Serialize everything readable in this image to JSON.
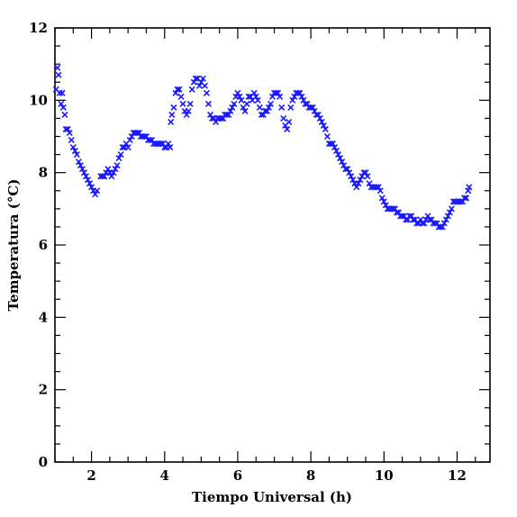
{
  "chart_data": {
    "type": "scatter",
    "xlabel": "Tiempo Universal (h)",
    "ylabel": "Temperatura (°C)",
    "xlim": [
      1.0,
      12.9
    ],
    "ylim": [
      0,
      12
    ],
    "xticks": [
      2,
      4,
      6,
      8,
      10,
      12
    ],
    "yticks": [
      0,
      2,
      4,
      6,
      8,
      10,
      12
    ],
    "x_minor_step": 0.5,
    "y_minor_step": 0.5,
    "marker": "x",
    "marker_color": "#1a1aff",
    "grid": false,
    "series": [
      {
        "points": [
          [
            1.03,
            10.3
          ],
          [
            1.07,
            10.9
          ],
          [
            1.1,
            10.7
          ],
          [
            1.13,
            10.2
          ],
          [
            1.17,
            9.9
          ],
          [
            1.2,
            10.2
          ],
          [
            1.23,
            9.8
          ],
          [
            1.27,
            9.6
          ],
          [
            1.3,
            9.2
          ],
          [
            1.35,
            9.2
          ],
          [
            1.4,
            9.1
          ],
          [
            1.45,
            8.9
          ],
          [
            1.5,
            8.7
          ],
          [
            1.55,
            8.6
          ],
          [
            1.6,
            8.5
          ],
          [
            1.65,
            8.3
          ],
          [
            1.7,
            8.2
          ],
          [
            1.75,
            8.1
          ],
          [
            1.8,
            8.0
          ],
          [
            1.85,
            7.9
          ],
          [
            1.9,
            7.8
          ],
          [
            1.95,
            7.7
          ],
          [
            2.0,
            7.6
          ],
          [
            2.05,
            7.5
          ],
          [
            2.1,
            7.4
          ],
          [
            2.15,
            7.5
          ],
          [
            2.25,
            7.9
          ],
          [
            2.3,
            7.9
          ],
          [
            2.35,
            7.9
          ],
          [
            2.4,
            8.0
          ],
          [
            2.45,
            8.1
          ],
          [
            2.5,
            8.0
          ],
          [
            2.55,
            7.9
          ],
          [
            2.6,
            8.0
          ],
          [
            2.65,
            8.1
          ],
          [
            2.7,
            8.2
          ],
          [
            2.75,
            8.4
          ],
          [
            2.8,
            8.5
          ],
          [
            2.85,
            8.7
          ],
          [
            2.9,
            8.7
          ],
          [
            2.95,
            8.8
          ],
          [
            3.0,
            8.7
          ],
          [
            3.05,
            8.9
          ],
          [
            3.1,
            9.0
          ],
          [
            3.15,
            9.1
          ],
          [
            3.2,
            9.1
          ],
          [
            3.25,
            9.1
          ],
          [
            3.3,
            9.1
          ],
          [
            3.35,
            9.0
          ],
          [
            3.4,
            9.0
          ],
          [
            3.45,
            9.0
          ],
          [
            3.5,
            9.0
          ],
          [
            3.55,
            8.9
          ],
          [
            3.6,
            8.9
          ],
          [
            3.65,
            8.9
          ],
          [
            3.7,
            8.8
          ],
          [
            3.75,
            8.8
          ],
          [
            3.8,
            8.8
          ],
          [
            3.85,
            8.8
          ],
          [
            3.9,
            8.8
          ],
          [
            3.95,
            8.8
          ],
          [
            4.0,
            8.7
          ],
          [
            4.05,
            8.7
          ],
          [
            4.1,
            8.8
          ],
          [
            4.15,
            8.7
          ],
          [
            4.17,
            9.4
          ],
          [
            4.2,
            9.6
          ],
          [
            4.25,
            9.8
          ],
          [
            4.3,
            10.2
          ],
          [
            4.35,
            10.3
          ],
          [
            4.4,
            10.3
          ],
          [
            4.45,
            10.1
          ],
          [
            4.5,
            9.9
          ],
          [
            4.55,
            9.7
          ],
          [
            4.6,
            9.6
          ],
          [
            4.65,
            9.7
          ],
          [
            4.7,
            9.9
          ],
          [
            4.75,
            10.3
          ],
          [
            4.8,
            10.5
          ],
          [
            4.85,
            10.6
          ],
          [
            4.9,
            10.6
          ],
          [
            4.95,
            10.4
          ],
          [
            5.0,
            10.5
          ],
          [
            5.05,
            10.6
          ],
          [
            5.1,
            10.4
          ],
          [
            5.15,
            10.2
          ],
          [
            5.2,
            9.9
          ],
          [
            5.25,
            9.6
          ],
          [
            5.3,
            9.5
          ],
          [
            5.35,
            9.5
          ],
          [
            5.4,
            9.4
          ],
          [
            5.45,
            9.5
          ],
          [
            5.5,
            9.5
          ],
          [
            5.55,
            9.5
          ],
          [
            5.6,
            9.5
          ],
          [
            5.65,
            9.6
          ],
          [
            5.7,
            9.6
          ],
          [
            5.75,
            9.6
          ],
          [
            5.8,
            9.7
          ],
          [
            5.85,
            9.8
          ],
          [
            5.9,
            9.9
          ],
          [
            5.95,
            10.1
          ],
          [
            6.0,
            10.2
          ],
          [
            6.05,
            10.1
          ],
          [
            6.1,
            10.0
          ],
          [
            6.15,
            9.8
          ],
          [
            6.2,
            9.7
          ],
          [
            6.25,
            9.9
          ],
          [
            6.3,
            10.1
          ],
          [
            6.35,
            10.1
          ],
          [
            6.4,
            10.0
          ],
          [
            6.45,
            10.2
          ],
          [
            6.5,
            10.1
          ],
          [
            6.55,
            10.0
          ],
          [
            6.6,
            9.8
          ],
          [
            6.65,
            9.6
          ],
          [
            6.7,
            9.6
          ],
          [
            6.75,
            9.7
          ],
          [
            6.8,
            9.7
          ],
          [
            6.85,
            9.8
          ],
          [
            6.9,
            9.9
          ],
          [
            6.95,
            10.1
          ],
          [
            7.0,
            10.2
          ],
          [
            7.05,
            10.2
          ],
          [
            7.1,
            10.2
          ],
          [
            7.15,
            10.1
          ],
          [
            7.2,
            9.8
          ],
          [
            7.25,
            9.5
          ],
          [
            7.3,
            9.3
          ],
          [
            7.35,
            9.2
          ],
          [
            7.4,
            9.4
          ],
          [
            7.45,
            9.8
          ],
          [
            7.5,
            10.0
          ],
          [
            7.55,
            10.1
          ],
          [
            7.6,
            10.2
          ],
          [
            7.65,
            10.2
          ],
          [
            7.7,
            10.2
          ],
          [
            7.75,
            10.1
          ],
          [
            7.8,
            10.0
          ],
          [
            7.85,
            9.9
          ],
          [
            7.9,
            9.9
          ],
          [
            7.95,
            9.8
          ],
          [
            8.0,
            9.8
          ],
          [
            8.05,
            9.8
          ],
          [
            8.1,
            9.7
          ],
          [
            8.15,
            9.6
          ],
          [
            8.2,
            9.6
          ],
          [
            8.25,
            9.5
          ],
          [
            8.3,
            9.4
          ],
          [
            8.35,
            9.3
          ],
          [
            8.4,
            9.2
          ],
          [
            8.45,
            9.0
          ],
          [
            8.5,
            8.8
          ],
          [
            8.55,
            8.8
          ],
          [
            8.6,
            8.8
          ],
          [
            8.65,
            8.7
          ],
          [
            8.7,
            8.6
          ],
          [
            8.75,
            8.5
          ],
          [
            8.8,
            8.4
          ],
          [
            8.85,
            8.3
          ],
          [
            8.9,
            8.2
          ],
          [
            8.95,
            8.1
          ],
          [
            9.0,
            8.1
          ],
          [
            9.05,
            8.0
          ],
          [
            9.1,
            7.9
          ],
          [
            9.15,
            7.8
          ],
          [
            9.2,
            7.7
          ],
          [
            9.25,
            7.6
          ],
          [
            9.3,
            7.7
          ],
          [
            9.35,
            7.8
          ],
          [
            9.4,
            7.9
          ],
          [
            9.45,
            8.0
          ],
          [
            9.5,
            8.0
          ],
          [
            9.55,
            7.9
          ],
          [
            9.6,
            7.7
          ],
          [
            9.65,
            7.6
          ],
          [
            9.7,
            7.6
          ],
          [
            9.75,
            7.6
          ],
          [
            9.8,
            7.6
          ],
          [
            9.85,
            7.6
          ],
          [
            9.9,
            7.5
          ],
          [
            9.95,
            7.3
          ],
          [
            10.0,
            7.2
          ],
          [
            10.05,
            7.1
          ],
          [
            10.1,
            7.0
          ],
          [
            10.15,
            7.0
          ],
          [
            10.2,
            7.0
          ],
          [
            10.25,
            7.0
          ],
          [
            10.3,
            7.0
          ],
          [
            10.35,
            6.9
          ],
          [
            10.4,
            6.9
          ],
          [
            10.45,
            6.8
          ],
          [
            10.5,
            6.8
          ],
          [
            10.55,
            6.8
          ],
          [
            10.6,
            6.7
          ],
          [
            10.65,
            6.7
          ],
          [
            10.7,
            6.8
          ],
          [
            10.75,
            6.8
          ],
          [
            10.8,
            6.7
          ],
          [
            10.85,
            6.7
          ],
          [
            10.9,
            6.6
          ],
          [
            10.95,
            6.6
          ],
          [
            11.0,
            6.7
          ],
          [
            11.05,
            6.6
          ],
          [
            11.1,
            6.6
          ],
          [
            11.15,
            6.7
          ],
          [
            11.2,
            6.8
          ],
          [
            11.25,
            6.7
          ],
          [
            11.3,
            6.7
          ],
          [
            11.35,
            6.6
          ],
          [
            11.4,
            6.6
          ],
          [
            11.45,
            6.6
          ],
          [
            11.5,
            6.5
          ],
          [
            11.55,
            6.5
          ],
          [
            11.6,
            6.5
          ],
          [
            11.65,
            6.6
          ],
          [
            11.7,
            6.7
          ],
          [
            11.75,
            6.8
          ],
          [
            11.8,
            6.9
          ],
          [
            11.85,
            7.0
          ],
          [
            11.9,
            7.2
          ],
          [
            11.95,
            7.2
          ],
          [
            12.0,
            7.2
          ],
          [
            12.05,
            7.2
          ],
          [
            12.1,
            7.2
          ],
          [
            12.15,
            7.2
          ],
          [
            12.2,
            7.3
          ],
          [
            12.25,
            7.3
          ],
          [
            12.3,
            7.5
          ],
          [
            12.33,
            7.6
          ]
        ]
      }
    ]
  }
}
